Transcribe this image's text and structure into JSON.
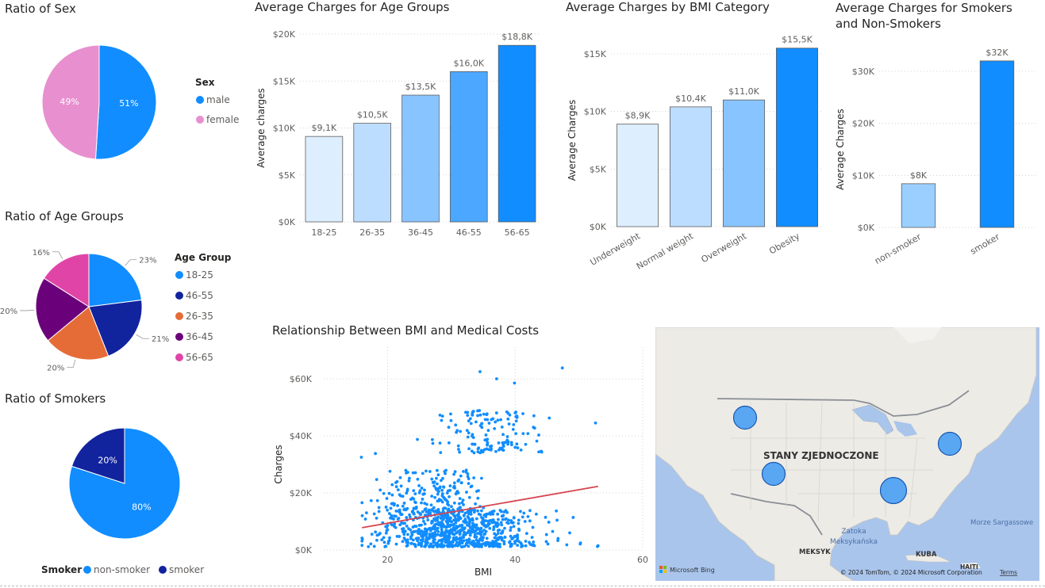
{
  "colors": {
    "male": "#118DFF",
    "female": "#E88FCF",
    "nonsmoker": "#118DFF",
    "smoker": "#12239E",
    "age_18_25": "#118DFF",
    "age_46_55": "#12239E",
    "age_26_35": "#E66C37",
    "age_36_45": "#6B007B",
    "age_56_65": "#E044A7",
    "trend": "#D64550",
    "scatter": "#118DFF"
  },
  "chart_data": [
    {
      "id": "sex",
      "type": "pie",
      "title": "Ratio of Sex",
      "legend_title": "Sex",
      "legend_position": "right",
      "slices": [
        {
          "label": "male",
          "value": 51,
          "text": "51%"
        },
        {
          "label": "female",
          "value": 49,
          "text": "49%"
        }
      ]
    },
    {
      "id": "age_groups_pie",
      "type": "pie",
      "title": "Ratio of Age Groups",
      "legend_title": "Age Group",
      "legend_position": "right",
      "slices": [
        {
          "label": "18-25",
          "value": 23,
          "text": "23%"
        },
        {
          "label": "46-55",
          "value": 21,
          "text": "21%"
        },
        {
          "label": "26-35",
          "value": 20,
          "text": "20%"
        },
        {
          "label": "36-45",
          "value": 20,
          "text": "20%"
        },
        {
          "label": "56-65",
          "value": 16,
          "text": "16%"
        }
      ]
    },
    {
      "id": "smokers_pie",
      "type": "pie",
      "title": "Ratio of Smokers",
      "legend_title": "Smoker",
      "legend_position": "bottom",
      "slices": [
        {
          "label": "non-smoker",
          "value": 80,
          "text": "80%"
        },
        {
          "label": "smoker",
          "value": 20,
          "text": "20%"
        }
      ]
    },
    {
      "id": "age_bar",
      "type": "bar",
      "title": "Average Charges for Age Groups",
      "xlabel": "",
      "ylabel": "Average charges",
      "categories": [
        "18-25",
        "26-35",
        "36-45",
        "46-55",
        "56-65"
      ],
      "values": [
        9100,
        10500,
        13500,
        16000,
        18800
      ],
      "labels": [
        "$9,1K",
        "$10,5K",
        "$13,5K",
        "$16,0K",
        "$18,8K"
      ],
      "yticks": [
        "$0K",
        "$5K",
        "$10K",
        "$15K",
        "$20K"
      ],
      "ylim": [
        0,
        20000
      ],
      "grid": true
    },
    {
      "id": "bmi_bar",
      "type": "bar",
      "title": "Average Charges by BMI Category",
      "xlabel": "",
      "ylabel": "Average Charges",
      "categories": [
        "Underweight",
        "Normal weight",
        "Overweight",
        "Obesity"
      ],
      "values": [
        8900,
        10400,
        11000,
        15500
      ],
      "labels": [
        "$8,9K",
        "$10,4K",
        "$11,0K",
        "$15,5K"
      ],
      "yticks": [
        "$0K",
        "$5K",
        "$10K",
        "$15K"
      ],
      "ylim": [
        0,
        15000
      ],
      "grid": true
    },
    {
      "id": "smoker_bar",
      "type": "bar",
      "title": "Average Charges for Smokers and Non-Smokers",
      "xlabel": "",
      "ylabel": "Average Charges",
      "categories": [
        "non-smoker",
        "smoker"
      ],
      "values": [
        8400,
        32000
      ],
      "labels": [
        "$8K",
        "$32K"
      ],
      "yticks": [
        "$0K",
        "$10K",
        "$20K",
        "$30K"
      ],
      "ylim": [
        0,
        30000
      ],
      "grid": true
    },
    {
      "id": "bmi_scatter",
      "type": "scatter",
      "title": "Relationship Between BMI and Medical Costs",
      "xlabel": "BMI",
      "ylabel": "Charges",
      "xticks": [
        "20",
        "40",
        "60"
      ],
      "yticks": [
        "$0K",
        "$20K",
        "$40K",
        "$60K"
      ],
      "xlim": [
        10,
        60
      ],
      "ylim": [
        0,
        60000
      ],
      "grid": true,
      "trend": {
        "x": [
          16,
          53
        ],
        "y": [
          7800,
          22300
        ]
      },
      "clusters": [
        {
          "name": "base",
          "n": 800,
          "x_mean": 30.6,
          "x_sd": 6,
          "y_min": 1100,
          "y_max": 14000
        },
        {
          "name": "mid",
          "n": 180,
          "x_mean": 27,
          "x_sd": 4.5,
          "y_min": 14000,
          "y_max": 28000
        },
        {
          "name": "upper",
          "n": 140,
          "x_mean": 36,
          "x_sd": 4,
          "y_min": 34000,
          "y_max": 49000
        }
      ],
      "extra_points": [
        {
          "x": 15.9,
          "y": 32500
        },
        {
          "x": 34.5,
          "y": 62500
        },
        {
          "x": 47.4,
          "y": 63800
        },
        {
          "x": 37.1,
          "y": 60000
        },
        {
          "x": 39.9,
          "y": 58500
        },
        {
          "x": 52.6,
          "y": 44500
        },
        {
          "x": 52.9,
          "y": 1200
        },
        {
          "x": 50.2,
          "y": 2100
        },
        {
          "x": 48.1,
          "y": 1800
        },
        {
          "x": 46.7,
          "y": 3300
        },
        {
          "x": 18.1,
          "y": 33800
        },
        {
          "x": 49.1,
          "y": 11400
        }
      ]
    }
  ],
  "map": {
    "country_label": "STANY ZJEDNOCZONE",
    "labels": [
      {
        "text": "Zatoka Meksykańska"
      },
      {
        "text": "MEKSYK"
      },
      {
        "text": "KUBA"
      },
      {
        "text": "HAITI"
      },
      {
        "text": "Morze Sargassowe"
      }
    ],
    "provider": "Microsoft Bing",
    "copyright": "© 2024 TomTom, © 2024 Microsoft Corporation",
    "terms": "Terms"
  }
}
